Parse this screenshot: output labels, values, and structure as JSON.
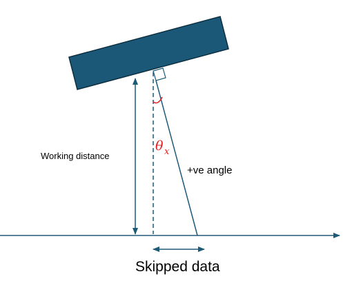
{
  "labels": {
    "working_distance": "Working distance",
    "positive_angle": "+ve angle",
    "skipped_data": "Skipped data",
    "theta_symbol": "θ",
    "theta_subscript": "x"
  },
  "colors": {
    "line": "#1c5a78",
    "block_fill": "#1b5878",
    "block_stroke": "#0d2e3f",
    "angle_accent": "#e02020",
    "text": "#000000"
  }
}
